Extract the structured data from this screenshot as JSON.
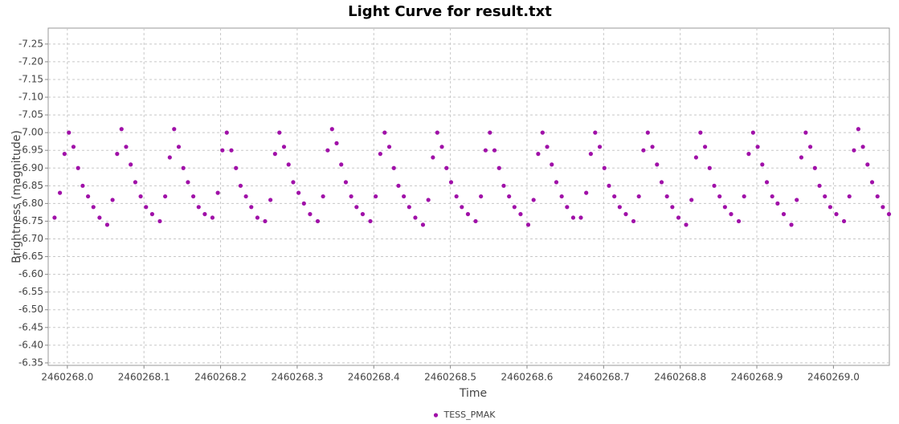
{
  "chart_data": {
    "type": "scatter",
    "title": "Light Curve for result.txt",
    "x_label": "Time",
    "y_label": "Brightness (magnitude)",
    "xlim": [
      2460267.975,
      2460269.073
    ],
    "ylim": [
      -6.343,
      -7.295
    ],
    "xticks": [
      {
        "value": 2460268,
        "label": "2460268.0"
      },
      2460268.1,
      2460268.2,
      2460268.3,
      2460268.4,
      2460268.5,
      2460268.6,
      2460268.7,
      2460268.8,
      2460268.9,
      {
        "value": 2460269,
        "label": "2460269.0"
      }
    ],
    "yticks": [
      -7.25,
      {
        "value": -7.2,
        "label": "-7.20"
      },
      -7.15,
      {
        "value": -7.1,
        "label": "-7.10"
      },
      -7.05,
      {
        "value": -7.0,
        "label": "-7.00"
      },
      -6.95,
      {
        "value": -6.9,
        "label": "-6.90"
      },
      -6.85,
      {
        "value": -6.8,
        "label": "-6.80"
      },
      -6.75,
      {
        "value": -6.7,
        "label": "-6.70"
      },
      -6.65,
      {
        "value": -6.6,
        "label": "-6.60"
      },
      -6.55,
      {
        "value": -6.5,
        "label": "-6.50"
      },
      -6.45,
      {
        "value": -6.4,
        "label": "-6.40"
      },
      -6.35
    ],
    "grid": true,
    "legend": "bottom",
    "x": [
      2460267.9833,
      2460267.9903,
      2460267.9963,
      2460268.002,
      2460268.008,
      2460268.014,
      2460268.02,
      2460268.027,
      2460268.034,
      2460268.042,
      2460268.052,
      2460268.059,
      2460268.065,
      2460268.0707,
      2460268.0767,
      2460268.0827,
      2460268.0887,
      2460268.0957,
      2460268.1027,
      2460268.1107,
      2460268.1207,
      2460268.1277,
      2460268.1337,
      2460268.1394,
      2460268.1454,
      2460268.1514,
      2460268.1574,
      2460268.1644,
      2460268.1714,
      2460268.1794,
      2460268.1894,
      2460268.1964,
      2460268.2024,
      2460268.2081,
      2460268.2141,
      2460268.2201,
      2460268.2261,
      2460268.2331,
      2460268.2401,
      2460268.2481,
      2460268.2581,
      2460268.2651,
      2460268.2711,
      2460268.2768,
      2460268.2828,
      2460268.2888,
      2460268.2948,
      2460268.3018,
      2460268.3088,
      2460268.3168,
      2460268.3268,
      2460268.3338,
      2460268.3398,
      2460268.3455,
      2460268.3515,
      2460268.3575,
      2460268.3635,
      2460268.3705,
      2460268.3775,
      2460268.3855,
      2460268.3955,
      2460268.4025,
      2460268.4085,
      2460268.4142,
      2460268.4202,
      2460268.4262,
      2460268.4322,
      2460268.4392,
      2460268.4462,
      2460268.4542,
      2460268.4642,
      2460268.4712,
      2460268.4772,
      2460268.4829,
      2460268.4889,
      2460268.4949,
      2460268.5009,
      2460268.5079,
      2460268.5149,
      2460268.5229,
      2460268.5329,
      2460268.5399,
      2460268.5459,
      2460268.5516,
      2460268.5576,
      2460268.5636,
      2460268.5696,
      2460268.5766,
      2460268.5836,
      2460268.5916,
      2460268.6016,
      2460268.6086,
      2460268.6146,
      2460268.6203,
      2460268.6263,
      2460268.6323,
      2460268.6383,
      2460268.6453,
      2460268.6523,
      2460268.6603,
      2460268.6703,
      2460268.6773,
      2460268.6833,
      2460268.689,
      2460268.695,
      2460268.701,
      2460268.707,
      2460268.714,
      2460268.721,
      2460268.729,
      2460268.739,
      2460268.746,
      2460268.752,
      2460268.7577,
      2460268.7637,
      2460268.7697,
      2460268.7757,
      2460268.7827,
      2460268.7897,
      2460268.7977,
      2460268.8077,
      2460268.8147,
      2460268.8207,
      2460268.8264,
      2460268.8324,
      2460268.8384,
      2460268.8444,
      2460268.8514,
      2460268.8584,
      2460268.8664,
      2460268.8764,
      2460268.8834,
      2460268.8894,
      2460268.8951,
      2460268.9011,
      2460268.9071,
      2460268.9131,
      2460268.9201,
      2460268.9271,
      2460268.9351,
      2460268.9451,
      2460268.9521,
      2460268.9581,
      2460268.9638,
      2460268.9698,
      2460268.9758,
      2460268.9818,
      2460268.9888,
      2460268.9958,
      2460269.0038,
      2460269.0138,
      2460269.0208,
      2460269.0268,
      2460269.0325,
      2460269.0385,
      2460269.0445,
      2460269.0505,
      2460269.0575,
      2460269.0645,
      2460269.0725
    ],
    "series": [
      {
        "name": "TESS_PMAK",
        "color": "#a010a8",
        "values": [
          -6.76,
          -6.83,
          -6.94,
          -7.0,
          -6.96,
          -6.9,
          -6.85,
          -6.82,
          -6.79,
          -6.76,
          -6.74,
          -6.81,
          -6.94,
          -7.01,
          -6.96,
          -6.91,
          -6.86,
          -6.82,
          -6.79,
          -6.77,
          -6.75,
          -6.82,
          -6.93,
          -7.01,
          -6.96,
          -6.9,
          -6.86,
          -6.82,
          -6.79,
          -6.77,
          -6.76,
          -6.83,
          -6.95,
          -7.0,
          -6.95,
          -6.9,
          -6.85,
          -6.82,
          -6.79,
          -6.76,
          -6.75,
          -6.81,
          -6.94,
          -7.0,
          -6.96,
          -6.91,
          -6.86,
          -6.83,
          -6.8,
          -6.77,
          -6.75,
          -6.82,
          -6.95,
          -7.01,
          -6.97,
          -6.91,
          -6.86,
          -6.82,
          -6.79,
          -6.77,
          -6.75,
          -6.82,
          -6.94,
          -7.0,
          -6.96,
          -6.9,
          -6.85,
          -6.82,
          -6.79,
          -6.76,
          -6.74,
          -6.81,
          -6.93,
          -7.0,
          -6.96,
          -6.9,
          -6.86,
          -6.82,
          -6.79,
          -6.77,
          -6.75,
          -6.82,
          -6.95,
          -7.0,
          -6.95,
          -6.9,
          -6.85,
          -6.82,
          -6.79,
          -6.77,
          -6.74,
          -6.81,
          -6.94,
          -7.0,
          -6.96,
          -6.91,
          -6.86,
          -6.82,
          -6.79,
          -6.76,
          -6.76,
          -6.83,
          -6.94,
          -7.0,
          -6.96,
          -6.9,
          -6.85,
          -6.82,
          -6.79,
          -6.77,
          -6.75,
          -6.82,
          -6.95,
          -7.0,
          -6.96,
          -6.91,
          -6.86,
          -6.82,
          -6.79,
          -6.76,
          -6.74,
          -6.81,
          -6.93,
          -7.0,
          -6.96,
          -6.9,
          -6.85,
          -6.82,
          -6.79,
          -6.77,
          -6.75,
          -6.82,
          -6.94,
          -7.0,
          -6.96,
          -6.91,
          -6.86,
          -6.82,
          -6.8,
          -6.77,
          -6.74,
          -6.81,
          -6.93,
          -7.0,
          -6.96,
          -6.9,
          -6.85,
          -6.82,
          -6.79,
          -6.77,
          -6.75,
          -6.82,
          -6.95,
          -7.01,
          -6.96,
          -6.91,
          -6.86,
          -6.82,
          -6.79,
          -6.77
        ]
      }
    ]
  }
}
